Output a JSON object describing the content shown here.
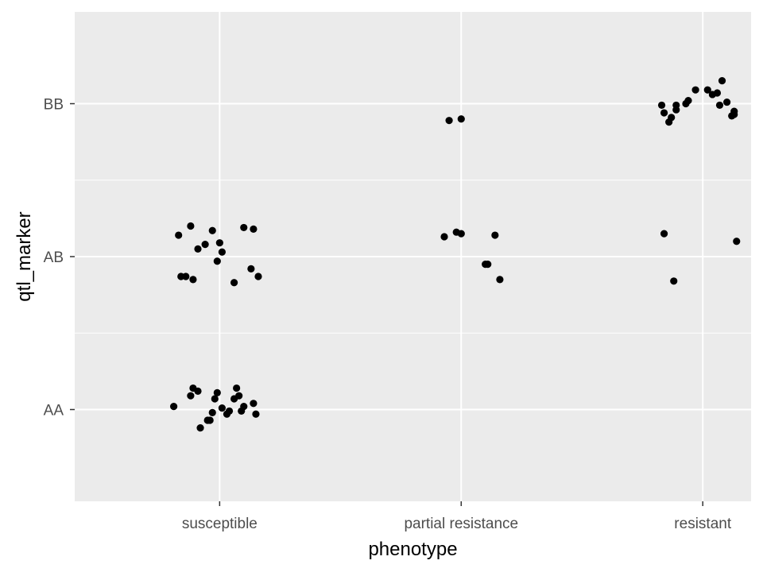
{
  "chart_data": {
    "type": "scatter",
    "title": "",
    "xlabel": "phenotype",
    "ylabel": "qtl_marker",
    "x_categories": [
      "susceptible",
      "partial resistance",
      "resistant"
    ],
    "y_categories": [
      "AA",
      "AB",
      "BB"
    ],
    "ylim": [
      0.4,
      3.6
    ],
    "grid": true,
    "legend": "none",
    "point_color": "#000000",
    "panel_background": "#ebebeb",
    "gridline_color": "#ffffff",
    "points": [
      {
        "x": 0.81,
        "y": 1.02
      },
      {
        "x": 0.88,
        "y": 1.09
      },
      {
        "x": 0.91,
        "y": 1.12
      },
      {
        "x": 0.92,
        "y": 0.88
      },
      {
        "x": 0.98,
        "y": 1.07
      },
      {
        "x": 1.01,
        "y": 1.01
      },
      {
        "x": 0.95,
        "y": 0.93
      },
      {
        "x": 1.09,
        "y": 0.99
      },
      {
        "x": 1.15,
        "y": 0.97
      },
      {
        "x": 0.96,
        "y": 0.93
      },
      {
        "x": 1.03,
        "y": 0.97
      },
      {
        "x": 1.07,
        "y": 1.14
      },
      {
        "x": 1.14,
        "y": 1.04
      },
      {
        "x": 1.06,
        "y": 1.07
      },
      {
        "x": 0.89,
        "y": 1.14
      },
      {
        "x": 1.08,
        "y": 1.09
      },
      {
        "x": 0.97,
        "y": 0.98
      },
      {
        "x": 0.99,
        "y": 1.11
      },
      {
        "x": 1.1,
        "y": 1.02
      },
      {
        "x": 1.04,
        "y": 0.99
      },
      {
        "x": 0.83,
        "y": 2.14
      },
      {
        "x": 0.88,
        "y": 2.2
      },
      {
        "x": 0.97,
        "y": 2.17
      },
      {
        "x": 1.0,
        "y": 2.09
      },
      {
        "x": 1.01,
        "y": 2.03
      },
      {
        "x": 1.1,
        "y": 2.19
      },
      {
        "x": 1.14,
        "y": 2.18
      },
      {
        "x": 0.84,
        "y": 1.87
      },
      {
        "x": 0.86,
        "y": 1.87
      },
      {
        "x": 0.89,
        "y": 1.85
      },
      {
        "x": 0.99,
        "y": 1.97
      },
      {
        "x": 1.06,
        "y": 1.83
      },
      {
        "x": 1.13,
        "y": 1.92
      },
      {
        "x": 1.16,
        "y": 1.87
      },
      {
        "x": 0.91,
        "y": 2.05
      },
      {
        "x": 0.94,
        "y": 2.08
      },
      {
        "x": 1.93,
        "y": 2.13
      },
      {
        "x": 1.98,
        "y": 2.16
      },
      {
        "x": 2.0,
        "y": 2.15
      },
      {
        "x": 2.14,
        "y": 2.14
      },
      {
        "x": 2.1,
        "y": 1.95
      },
      {
        "x": 2.11,
        "y": 1.95
      },
      {
        "x": 2.16,
        "y": 1.85
      },
      {
        "x": 1.95,
        "y": 2.89
      },
      {
        "x": 2.0,
        "y": 2.9
      },
      {
        "x": 2.83,
        "y": 2.99
      },
      {
        "x": 2.86,
        "y": 2.88
      },
      {
        "x": 2.89,
        "y": 2.96
      },
      {
        "x": 2.89,
        "y": 2.99
      },
      {
        "x": 2.93,
        "y": 3.0
      },
      {
        "x": 2.94,
        "y": 3.02
      },
      {
        "x": 2.97,
        "y": 3.09
      },
      {
        "x": 3.02,
        "y": 3.09
      },
      {
        "x": 3.04,
        "y": 3.06
      },
      {
        "x": 3.06,
        "y": 3.07
      },
      {
        "x": 3.08,
        "y": 3.15
      },
      {
        "x": 3.1,
        "y": 3.01
      },
      {
        "x": 3.12,
        "y": 2.92
      },
      {
        "x": 3.13,
        "y": 2.93
      },
      {
        "x": 2.84,
        "y": 2.94
      },
      {
        "x": 2.87,
        "y": 2.91
      },
      {
        "x": 3.07,
        "y": 2.99
      },
      {
        "x": 3.13,
        "y": 2.95
      },
      {
        "x": 2.84,
        "y": 2.15
      },
      {
        "x": 2.88,
        "y": 1.84
      },
      {
        "x": 3.14,
        "y": 2.1
      }
    ]
  }
}
